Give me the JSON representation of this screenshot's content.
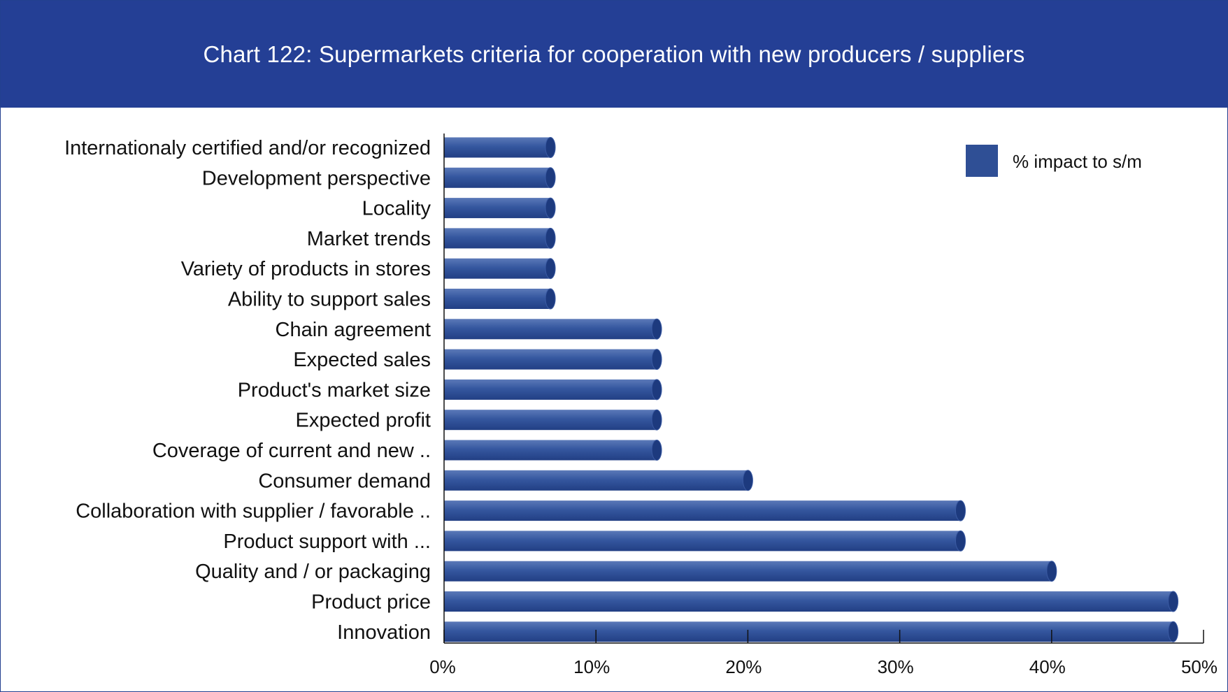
{
  "chart_data": {
    "type": "bar",
    "orientation": "horizontal",
    "title": "Chart 122: Supermarkets criteria for cooperation with new producers / suppliers",
    "categories": [
      "Internationaly certified and/or recognized",
      "Development perspective",
      "Locality",
      "Market trends",
      "Variety of products in stores",
      "Ability to support sales",
      "Chain agreement",
      "Expected sales",
      "Product's market size",
      "Expected profit",
      "Coverage of current and new ..",
      "Consumer demand",
      "Collaboration with supplier / favorable ..",
      "Product support with ...",
      "Quality and / or packaging",
      "Product price",
      "Innovation"
    ],
    "series": [
      {
        "name": "% impact to s/m",
        "values": [
          7,
          7,
          7,
          7,
          7,
          7,
          14,
          14,
          14,
          14,
          14,
          20,
          34,
          34,
          40,
          48,
          48
        ]
      }
    ],
    "xlim": [
      0,
      50
    ],
    "xticks": [
      "0%",
      "10%",
      "20%",
      "30%",
      "40%",
      "50%"
    ],
    "grid": false,
    "legend": "top-right",
    "colors": {
      "bar": "#2f4f95",
      "bar_cap": "#1d3a7e",
      "header": "#243f95"
    }
  }
}
